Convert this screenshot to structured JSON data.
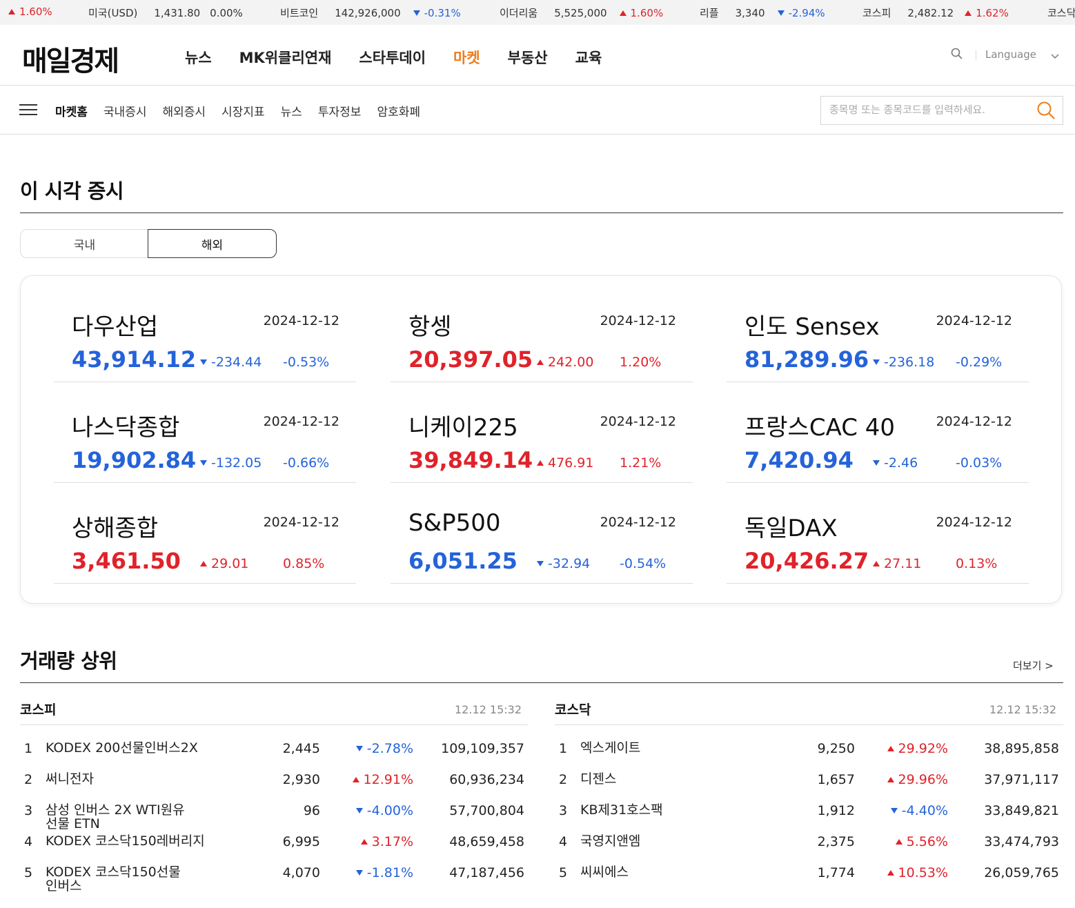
{
  "ticker": [
    {
      "name": "",
      "value": "",
      "change": "1.60%",
      "dir": "up"
    },
    {
      "name": "미국(USD)",
      "value": "1,431.80",
      "change": "0.00%",
      "dir": "flat"
    },
    {
      "name": "비트코인",
      "value": "142,926,000",
      "change": "-0.31%",
      "dir": "down"
    },
    {
      "name": "이더리움",
      "value": "5,525,000",
      "change": "1.60%",
      "dir": "up"
    },
    {
      "name": "리플",
      "value": "3,340",
      "change": "-2.94%",
      "dir": "down"
    },
    {
      "name": "코스피",
      "value": "2,482.12",
      "change": "1.62%",
      "dir": "up"
    },
    {
      "name": "코스닥",
      "value": "",
      "change": "",
      "dir": "flat"
    }
  ],
  "header": {
    "logo": "매일경제",
    "nav": [
      "뉴스",
      "MK위클리연재",
      "스타투데이",
      "마켓",
      "부동산",
      "교육"
    ],
    "active_nav": "마켓",
    "language": "Language"
  },
  "subnav": {
    "items": [
      "마켓홈",
      "국내증시",
      "해외증시",
      "시장지표",
      "뉴스",
      "투자정보",
      "암호화폐"
    ],
    "search_placeholder": "종목명 또는 종목코드를 입력하세요."
  },
  "market_now": {
    "title": "이 시각 증시",
    "tabs": [
      "국내",
      "해외"
    ],
    "active_tab": "해외",
    "indices": [
      {
        "name": "다우산업",
        "date": "2024-12-12",
        "value": "43,914.12",
        "change": "-234.44",
        "pct": "-0.53%",
        "dir": "down"
      },
      {
        "name": "항셍",
        "date": "2024-12-12",
        "value": "20,397.05",
        "change": "242.00",
        "pct": "1.20%",
        "dir": "up"
      },
      {
        "name": "인도 Sensex",
        "date": "2024-12-12",
        "value": "81,289.96",
        "change": "-236.18",
        "pct": "-0.29%",
        "dir": "down"
      },
      {
        "name": "나스닥종합",
        "date": "2024-12-12",
        "value": "19,902.84",
        "change": "-132.05",
        "pct": "-0.66%",
        "dir": "down"
      },
      {
        "name": "니케이225",
        "date": "2024-12-12",
        "value": "39,849.14",
        "change": "476.91",
        "pct": "1.21%",
        "dir": "up"
      },
      {
        "name": "프랑스CAC 40",
        "date": "2024-12-12",
        "value": "7,420.94",
        "change": "-2.46",
        "pct": "-0.03%",
        "dir": "down"
      },
      {
        "name": "상해종합",
        "date": "2024-12-12",
        "value": "3,461.50",
        "change": "29.01",
        "pct": "0.85%",
        "dir": "up"
      },
      {
        "name": "S&P500",
        "date": "2024-12-12",
        "value": "6,051.25",
        "change": "-32.94",
        "pct": "-0.54%",
        "dir": "down"
      },
      {
        "name": "독일DAX",
        "date": "2024-12-12",
        "value": "20,426.27",
        "change": "27.11",
        "pct": "0.13%",
        "dir": "up"
      }
    ]
  },
  "volume_top": {
    "title": "거래량 상위",
    "more": "더보기 >",
    "markets": [
      {
        "name": "코스피",
        "time": "12.12 15:32",
        "rows": [
          {
            "rank": "1",
            "name": "KODEX 200선물인버스2X",
            "price": "2,445",
            "rate": "-2.78%",
            "dir": "down",
            "volume": "109,109,357"
          },
          {
            "rank": "2",
            "name": "써니전자",
            "price": "2,930",
            "rate": "12.91%",
            "dir": "up",
            "volume": "60,936,234"
          },
          {
            "rank": "3",
            "name": "삼성 인버스 2X WTI원유 선물 ETN",
            "price": "96",
            "rate": "-4.00%",
            "dir": "down",
            "volume": "57,700,804"
          },
          {
            "rank": "4",
            "name": "KODEX 코스닥150레버리지",
            "price": "6,995",
            "rate": "3.17%",
            "dir": "up",
            "volume": "48,659,458"
          },
          {
            "rank": "5",
            "name": "KODEX 코스닥150선물인버스",
            "price": "4,070",
            "rate": "-1.81%",
            "dir": "down",
            "volume": "47,187,456"
          }
        ]
      },
      {
        "name": "코스닥",
        "time": "12.12 15:32",
        "rows": [
          {
            "rank": "1",
            "name": "엑스게이트",
            "price": "9,250",
            "rate": "29.92%",
            "dir": "up",
            "volume": "38,895,858"
          },
          {
            "rank": "2",
            "name": "디젠스",
            "price": "1,657",
            "rate": "29.96%",
            "dir": "up",
            "volume": "37,971,117"
          },
          {
            "rank": "3",
            "name": "KB제31호스팩",
            "price": "1,912",
            "rate": "-4.40%",
            "dir": "down",
            "volume": "33,849,821"
          },
          {
            "rank": "4",
            "name": "국영지앤엠",
            "price": "2,375",
            "rate": "5.56%",
            "dir": "up",
            "volume": "33,474,793"
          },
          {
            "rank": "5",
            "name": "씨씨에스",
            "price": "1,774",
            "rate": "10.53%",
            "dir": "up",
            "volume": "26,059,765"
          }
        ]
      }
    ]
  },
  "colors": {
    "up": "#e0222a",
    "down": "#2463d9",
    "accent": "#ef7c1b"
  }
}
